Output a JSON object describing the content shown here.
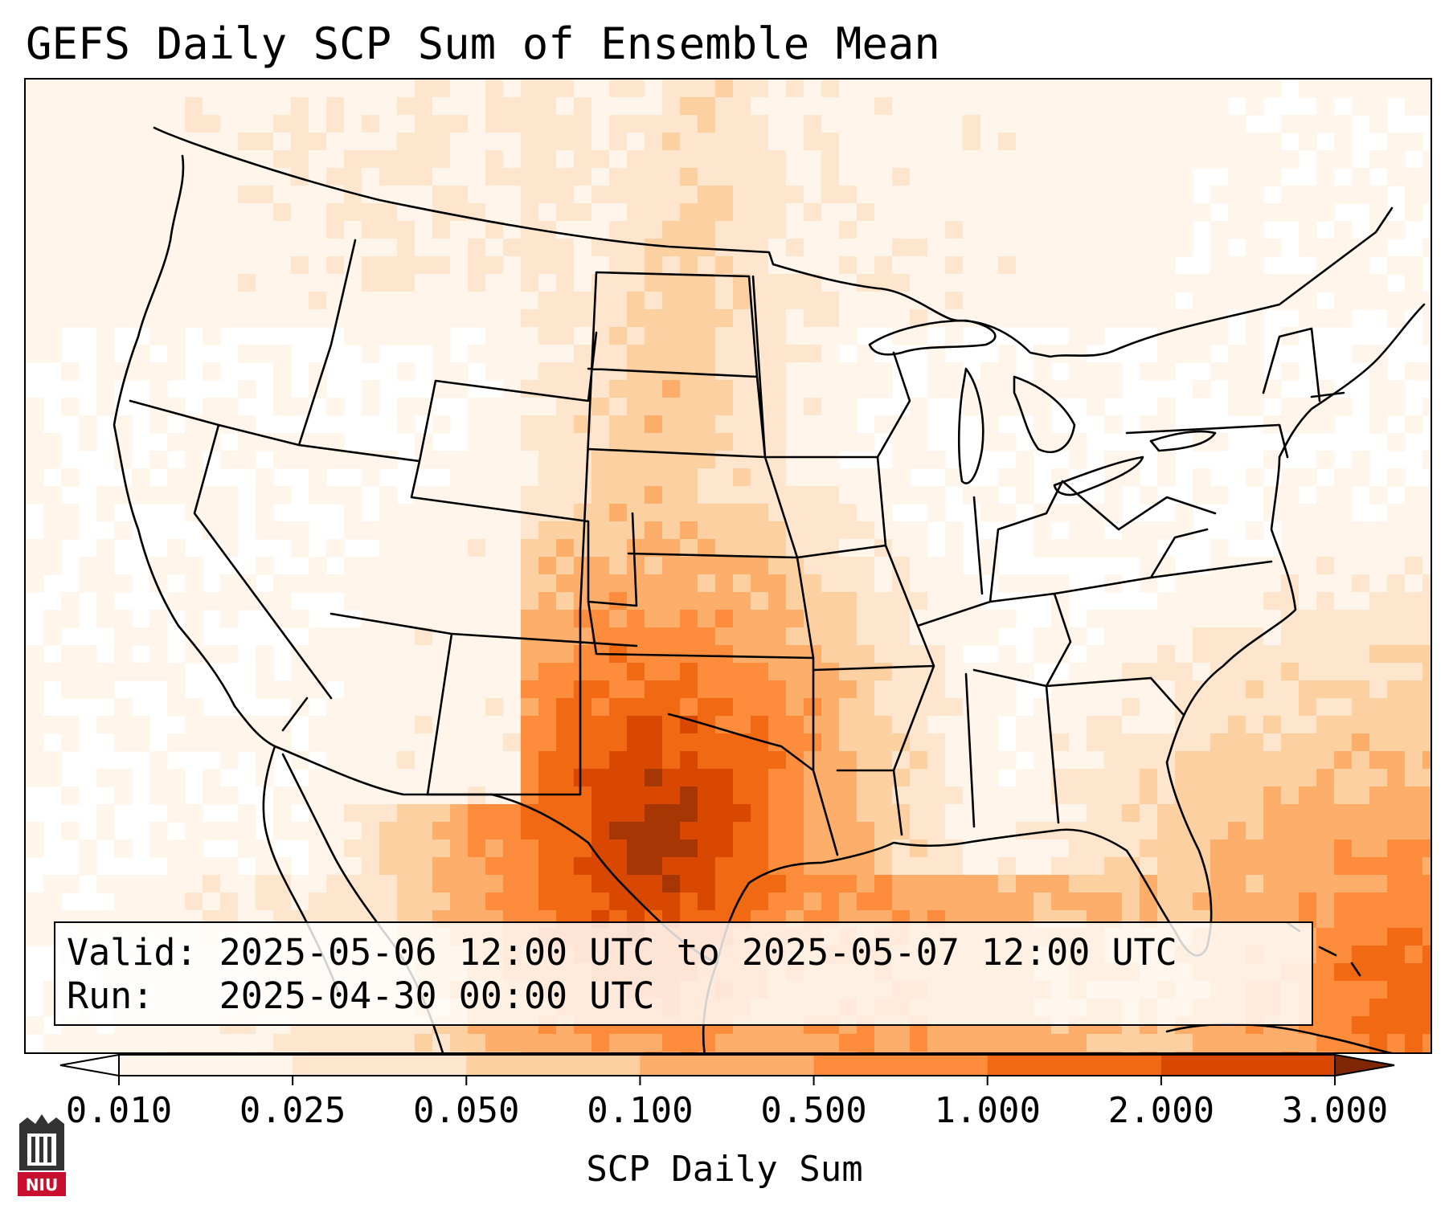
{
  "title": "GEFS Daily SCP Sum of Ensemble Mean",
  "info": {
    "valid_label": "Valid:",
    "valid_value": "2025-05-06 12:00 UTC to 2025-05-07 12:00 UTC",
    "run_label": "Run:",
    "run_value": "2025-04-30 00:00 UTC"
  },
  "colorbar": {
    "label": "SCP Daily Sum",
    "ticks": [
      "0.010",
      "0.025",
      "0.050",
      "0.100",
      "0.500",
      "1.000",
      "2.000",
      "3.000"
    ],
    "colors": [
      "#fff5eb",
      "#fee6ce",
      "#fdd0a2",
      "#fdae6b",
      "#fd8d3c",
      "#f16913",
      "#d94801",
      "#a63603"
    ],
    "under_color": "#ffffff",
    "over_color": "#7f2704",
    "extend": "both"
  },
  "logo": {
    "text": "NIU"
  },
  "map": {
    "projection": "Lambert conformal, CONUS",
    "basemap": [
      "coastlines",
      "country borders",
      "US state borders",
      "Great Lakes"
    ],
    "field": "SCP daily sum, ensemble mean",
    "maximum_region": "West Texas / Rio Grande"
  }
}
